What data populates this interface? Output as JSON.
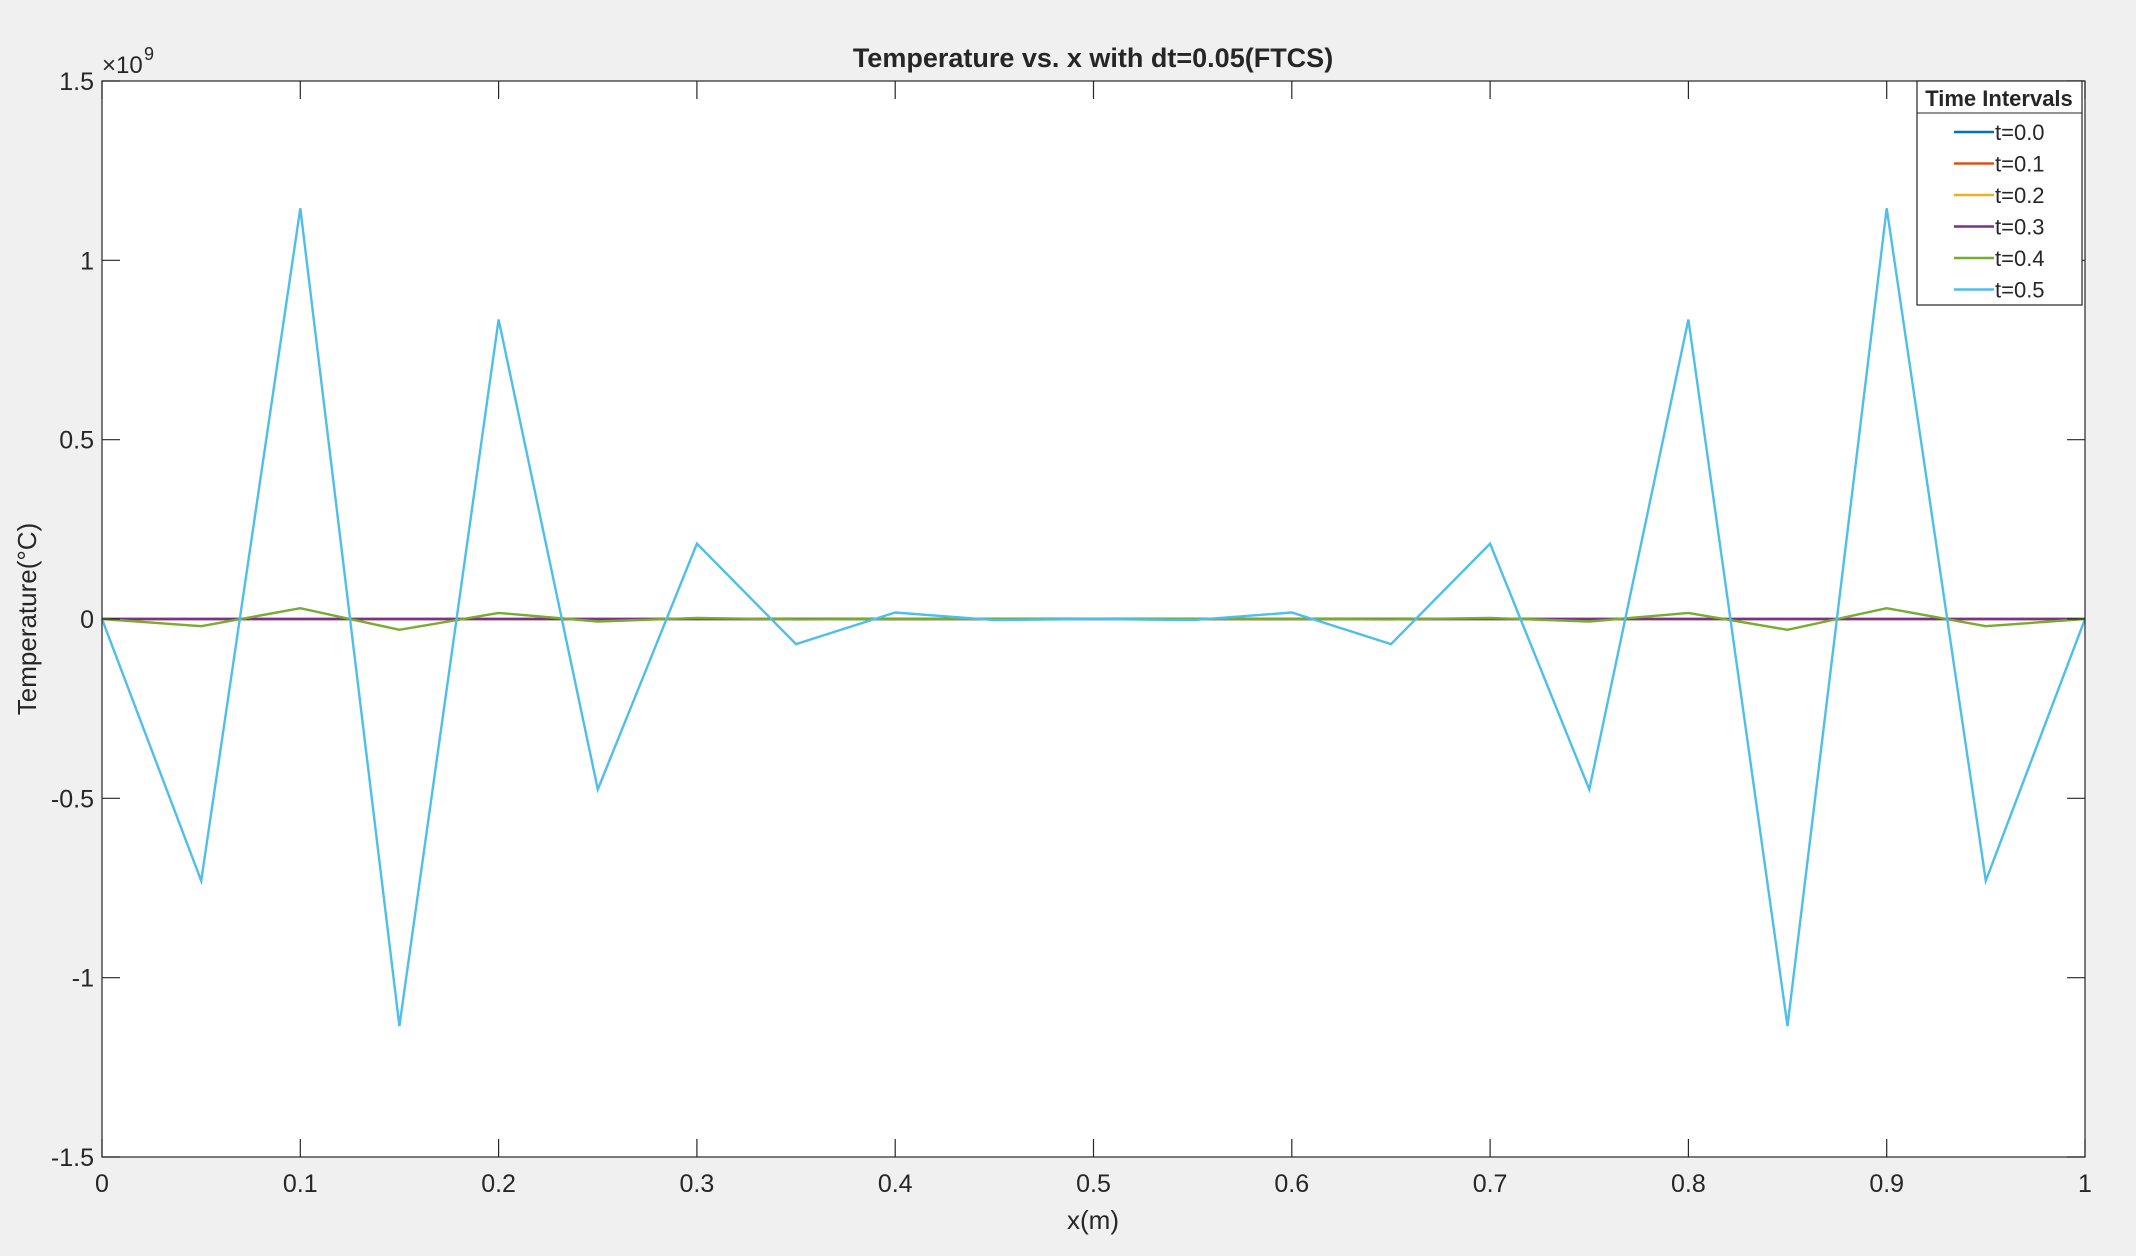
{
  "chart_data": {
    "type": "line",
    "title": "Temperature vs. x with dt=0.05(FTCS)",
    "xlabel": "x(m)",
    "ylabel": "Temperature(°C)",
    "exponent_base": "×10",
    "exponent_power": "9",
    "xlim": [
      0,
      1
    ],
    "ylim": [
      -1.5,
      1.5
    ],
    "x_ticks": [
      0,
      0.1,
      0.2,
      0.3,
      0.4,
      0.5,
      0.6,
      0.7,
      0.8,
      0.9,
      1
    ],
    "x_tick_labels": [
      "0",
      "0.1",
      "0.2",
      "0.3",
      "0.4",
      "0.5",
      "0.6",
      "0.7",
      "0.8",
      "0.9",
      "1"
    ],
    "y_ticks": [
      1.5,
      1,
      0.5,
      0,
      -0.5,
      -1,
      -1.5
    ],
    "y_tick_labels": [
      "1.5",
      "1",
      "0.5",
      "0",
      "-0.5",
      "-1",
      "-1.5"
    ],
    "grid": false,
    "legend_title": "Time Intervals",
    "legend_position": "top-right",
    "x": [
      0,
      0.05,
      0.1,
      0.15,
      0.2,
      0.25,
      0.3,
      0.35,
      0.4,
      0.45,
      0.5,
      0.55,
      0.6,
      0.65,
      0.7,
      0.75,
      0.8,
      0.85,
      0.9,
      0.95,
      1
    ],
    "series": [
      {
        "name": "t=0.0",
        "color": "#0072bd",
        "values": [
          0,
          0,
          0,
          0,
          0,
          0,
          0,
          0,
          0,
          0,
          0,
          0,
          0,
          0,
          0,
          0,
          0,
          0,
          0,
          0,
          0
        ]
      },
      {
        "name": "t=0.1",
        "color": "#d95319",
        "values": [
          0,
          0,
          0,
          0,
          0,
          0,
          0,
          0,
          0,
          0,
          0,
          0,
          0,
          0,
          0,
          0,
          0,
          0,
          0,
          0,
          0
        ]
      },
      {
        "name": "t=0.2",
        "color": "#edb120",
        "values": [
          0,
          0,
          0,
          0,
          0,
          0,
          0,
          0,
          0,
          0,
          0,
          0,
          0,
          0,
          0,
          0,
          0,
          0,
          0,
          0,
          0
        ]
      },
      {
        "name": "t=0.3",
        "color": "#7e2f8e",
        "values": [
          0,
          0,
          0,
          0,
          0,
          0,
          0,
          0,
          0,
          0,
          0,
          0,
          0,
          0,
          0,
          0,
          0,
          0,
          0,
          0,
          0
        ]
      },
      {
        "name": "t=0.4",
        "color": "#77ac30",
        "values": [
          0,
          -0.02,
          0.03,
          -0.03,
          0.017,
          -0.007,
          0.003,
          -0.001,
          0,
          0,
          0,
          0,
          0,
          -0.001,
          0.003,
          -0.007,
          0.017,
          -0.03,
          0.03,
          -0.02,
          0
        ]
      },
      {
        "name": "t=0.5",
        "color": "#4dbeee",
        "values": [
          0,
          -0.73,
          1.145,
          -1.135,
          0.835,
          -0.475,
          0.21,
          -0.07,
          0.018,
          -0.003,
          0,
          -0.003,
          0.018,
          -0.07,
          0.21,
          -0.475,
          0.835,
          -1.135,
          1.145,
          -0.73,
          0
        ]
      }
    ]
  }
}
